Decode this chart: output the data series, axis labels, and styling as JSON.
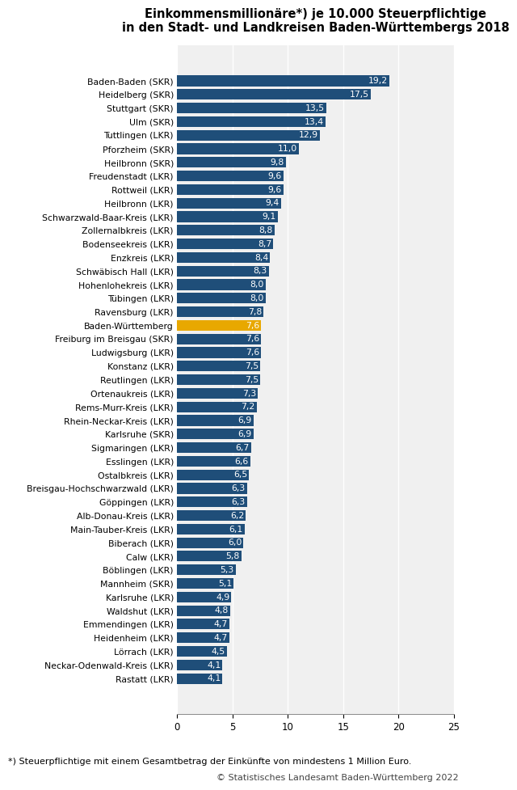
{
  "title_line1": "Einkommensmillionäre*) je 10.000 Steuerpflichtige",
  "title_line2": "in den Stadt- und Landkreisen Baden-Württembergs 2018",
  "title_superscript": "*)",
  "categories": [
    "Baden-Baden (SKR)",
    "Heidelberg (SKR)",
    "Stuttgart (SKR)",
    "Ulm (SKR)",
    "Tuttlingen (LKR)",
    "Pforzheim (SKR)",
    "Heilbronn (SKR)",
    "Freudenstadt (LKR)",
    "Rottweil (LKR)",
    "Heilbronn (LKR)",
    "Schwarzwald-Baar-Kreis (LKR)",
    "Zollernalbkreis (LKR)",
    "Bodenseekreis (LKR)",
    "Enzkreis (LKR)",
    "Schwäbisch Hall (LKR)",
    "Hohenlohekreis (LKR)",
    "Tübingen (LKR)",
    "Ravensburg (LKR)",
    "Baden-Württemberg",
    "Freiburg im Breisgau (SKR)",
    "Ludwigsburg (LKR)",
    "Konstanz (LKR)",
    "Reutlingen (LKR)",
    "Ortenaukreis (LKR)",
    "Rems-Murr-Kreis (LKR)",
    "Rhein-Neckar-Kreis (LKR)",
    "Karlsruhe (SKR)",
    "Sigmaringen (LKR)",
    "Esslingen (LKR)",
    "Ostalbkreis (LKR)",
    "Breisgau-Hochschwarzwald (LKR)",
    "Göppingen (LKR)",
    "Alb-Donau-Kreis (LKR)",
    "Main-Tauber-Kreis (LKR)",
    "Biberach (LKR)",
    "Calw (LKR)",
    "Böblingen (LKR)",
    "Mannheim (SKR)",
    "Karlsruhe (LKR)",
    "Waldshut (LKR)",
    "Emmendingen (LKR)",
    "Heidenheim (LKR)",
    "Lörrach (LKR)",
    "Neckar-Odenwald-Kreis (LKR)",
    "Rastatt (LKR)"
  ],
  "values": [
    19.2,
    17.5,
    13.5,
    13.4,
    12.9,
    11.0,
    9.8,
    9.6,
    9.6,
    9.4,
    9.1,
    8.8,
    8.7,
    8.4,
    8.3,
    8.0,
    8.0,
    7.8,
    7.6,
    7.6,
    7.6,
    7.5,
    7.5,
    7.3,
    7.2,
    6.9,
    6.9,
    6.7,
    6.6,
    6.5,
    6.3,
    6.3,
    6.2,
    6.1,
    6.0,
    5.8,
    5.3,
    5.1,
    4.9,
    4.8,
    4.7,
    4.7,
    4.5,
    4.1,
    4.1
  ],
  "bar_color_default": "#1F4E79",
  "bar_color_highlight": "#E8A800",
  "highlight_index": 18,
  "value_label_color": "#FFFFFF",
  "xlim": [
    0,
    25
  ],
  "xticks": [
    0,
    5,
    10,
    15,
    20,
    25
  ],
  "footnote": "*) Steuerpflichtige mit einem Gesamtbetrag der Einkünfte von mindestens 1 Million Euro.",
  "copyright": "© Statistisches Landesamt Baden-Württemberg 2022",
  "title_fontsize": 10.5,
  "label_fontsize": 7.8,
  "value_fontsize": 7.8,
  "axis_fontsize": 8.5,
  "footnote_fontsize": 8.0,
  "copyright_fontsize": 8.0,
  "background_color": "#FFFFFF",
  "plot_bg_color": "#F0F0F0",
  "grid_color": "#FFFFFF"
}
